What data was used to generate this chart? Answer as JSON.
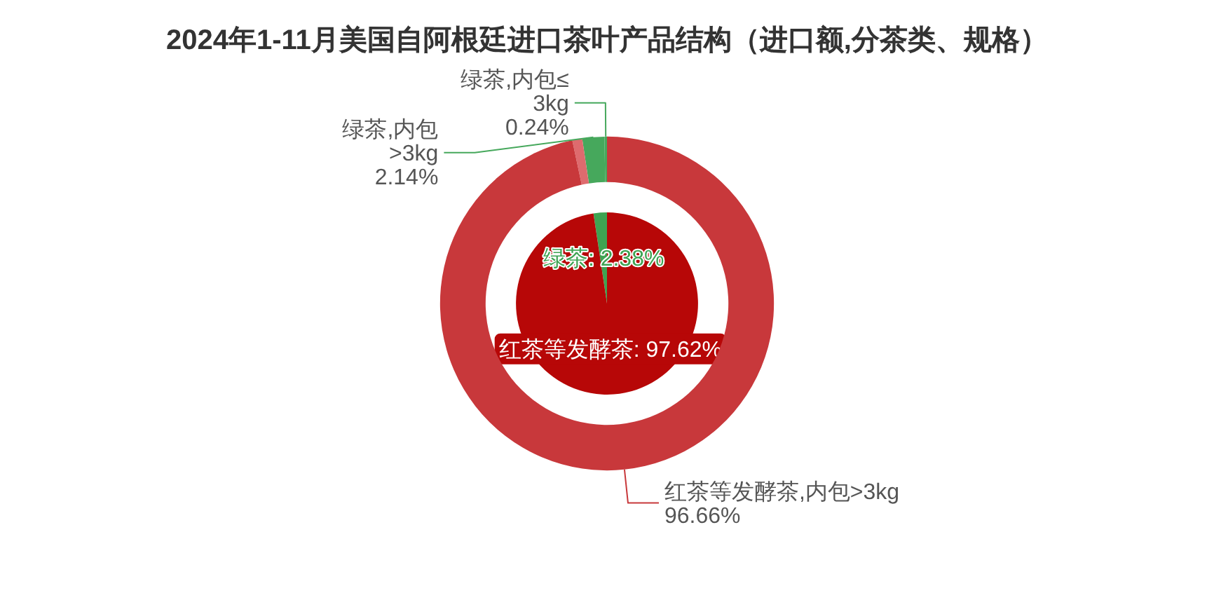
{
  "chart_data": [
    {
      "type": "pie",
      "title": "2024年1-11月美国自阿根廷进口茶叶产品结构（进口额,分茶类、规格）",
      "categories": [
        "绿茶",
        "红茶等发酵茶"
      ],
      "values": [
        2.38,
        97.62
      ],
      "colors": [
        "#3ea352",
        "#b70707"
      ],
      "value_labels": [
        "2.38%",
        "97.62%"
      ]
    },
    {
      "type": "donut",
      "categories": [
        "绿茶,内包≤3kg",
        "绿茶,内包>3kg",
        null,
        "红茶等发酵茶,内包>3kg"
      ],
      "values": [
        0.24,
        2.14,
        0.96,
        96.66
      ],
      "colors": [
        "#46a85c",
        "#46a85c",
        "#de6b6e",
        "#c8383b"
      ],
      "value_labels": [
        "0.24%",
        "2.14%",
        null,
        "96.66%"
      ]
    }
  ]
}
